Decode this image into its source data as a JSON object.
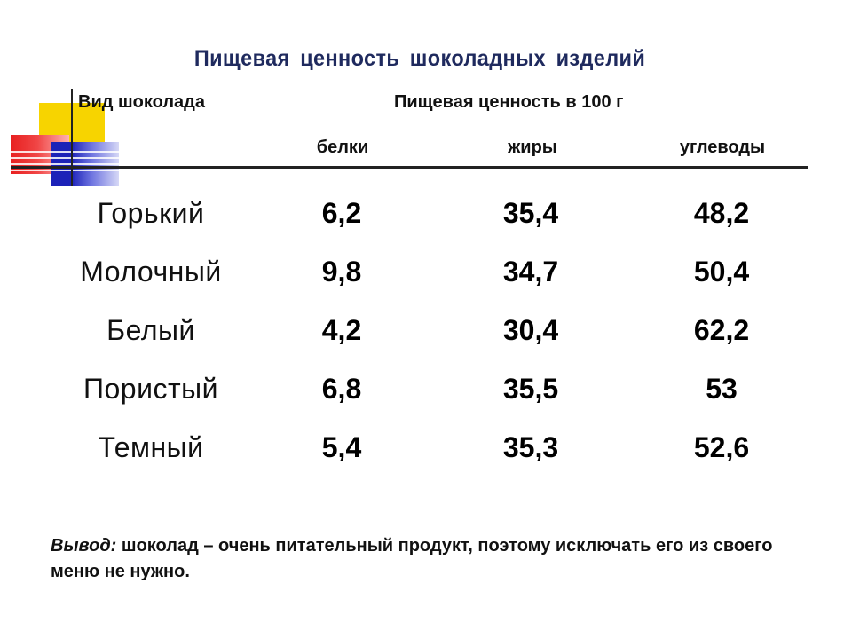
{
  "slide": {
    "title": "Пищевая  ценность  шоколадных  изделий"
  },
  "table": {
    "header_type": "Вид шоколада",
    "header_value": "Пищевая ценность в 100 г",
    "columns": [
      "белки",
      "жиры",
      "углеводы"
    ],
    "rows": [
      {
        "name": "Горький",
        "values": [
          "6,2",
          "35,4",
          "48,2"
        ]
      },
      {
        "name": "Молочный",
        "values": [
          "9,8",
          "34,7",
          "50,4"
        ]
      },
      {
        "name": "Белый",
        "values": [
          "4,2",
          "30,4",
          "62,2"
        ]
      },
      {
        "name": "Пористый",
        "values": [
          "6,8",
          "35,5",
          "53"
        ]
      },
      {
        "name": "Темный",
        "values": [
          "5,4",
          "35,3",
          "52,6"
        ]
      }
    ]
  },
  "conclusion": {
    "lead": "Вывод:",
    "text": " шоколад – очень питательный продукт, поэтому исключать его из своего меню не нужно."
  },
  "colors": {
    "title": "#1f2a5e",
    "deco_yellow": "#f7d400",
    "deco_red": "#e82020",
    "deco_blue": "#1c22b8"
  }
}
